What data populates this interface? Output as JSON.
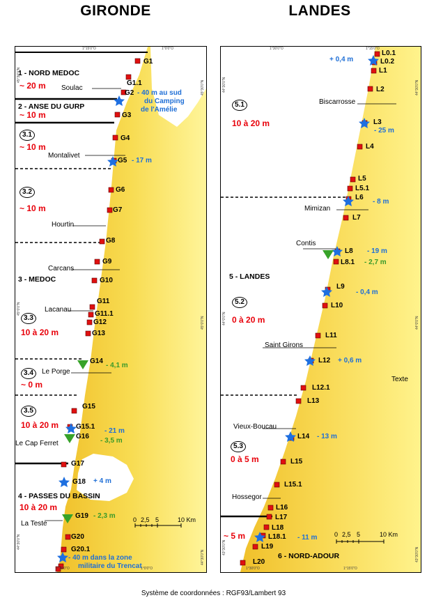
{
  "titles": {
    "left": "GIRONDE",
    "right": "LANDES"
  },
  "footer": "Système de coordonnées : RGF93/Lambert 93",
  "colors": {
    "sea": "#ffffff",
    "land_low": "#f1c62f",
    "land_high": "#fff59a",
    "site_marker": "#e01010",
    "star": "#1e6fe0",
    "triangle": "#37a229",
    "erosion_text": "#e8000a"
  },
  "gironde": {
    "sites": [
      "G1",
      "G1.1",
      "G2",
      "G3",
      "G4",
      "G5",
      "G6",
      "G7",
      "G8",
      "G9",
      "G10",
      "G11",
      "G11.1",
      "G12",
      "G13",
      "G14",
      "G15",
      "G15.1",
      "G16",
      "G17",
      "G18",
      "G19",
      "G20",
      "G20.1"
    ],
    "towns": [
      "Soulac",
      "Montalivet",
      "Hourtin",
      "Carcans",
      "Lacanau",
      "Le Porge",
      "Le Cap Ferret",
      "La Teste"
    ],
    "zones": [
      "1 - NORD MEDOC",
      "2 - ANSE DU GURP",
      "3 - MEDOC",
      "4 - PASSES DU BASSIN"
    ],
    "subzones": [
      "3.1",
      "3.2",
      "3.3",
      "3.4",
      "3.5"
    ],
    "erosion": [
      "~ 20 m",
      "~ 10 m",
      "~ 10 m",
      "~ 10 m",
      "10 à 20 m",
      "~ 0 m",
      "10 à 20 m",
      "10 à 20 m"
    ],
    "annotations": {
      "g2_line1": "- 40 m au sud",
      "g2_line2": "du Camping",
      "g2_line3": "de l'Amélie",
      "g5": "- 17 m",
      "g14": "- 4,1 m",
      "g15_1": "- 21 m",
      "g16": "- 3,5 m",
      "g18": "+ 4 m",
      "g19": "- 2,3 m",
      "g20_1_line1": "- 40 m dans la zone",
      "g20_1_line2": "militaire du Trencat"
    },
    "scale": {
      "ticks": [
        "0",
        "2,5",
        "5",
        "10 Km"
      ]
    },
    "graticule": {
      "top": [
        "1°15'0\"O",
        "1°0'0\"O"
      ],
      "bottom": [
        "1°15'0\"O",
        "1°0'0\"O"
      ],
      "left": [
        "45°30'0\"N",
        "45°0'0\"N",
        "44°30'0\"N"
      ],
      "right": [
        "45°30'0\"N",
        "45°0'0\"N",
        "44°30'0\"N"
      ]
    }
  },
  "landes": {
    "sites": [
      "L0.1",
      "L0.2",
      "L1",
      "L2",
      "L3",
      "L4",
      "L5",
      "L5.1",
      "L6",
      "L7",
      "L8",
      "L8.1",
      "L9",
      "L10",
      "L11",
      "L12",
      "L12.1",
      "L13",
      "L14",
      "L15",
      "L15.1",
      "L16",
      "L17",
      "L18",
      "L18.1",
      "L19",
      "L20"
    ],
    "towns": [
      "Biscarrosse",
      "Mimizan",
      "Contis",
      "Saint Girons",
      "Vieux-Boucau",
      "Hossegor"
    ],
    "zones": [
      "5 - LANDES",
      "6 - NORD-ADOUR"
    ],
    "subzones": [
      "5.1",
      "5.2",
      "5.3"
    ],
    "erosion": [
      "10 à 20 m",
      "0 à 20 m",
      "0 à 5 m",
      "~ 5 m"
    ],
    "annotations": {
      "l0": "+ 0,4 m",
      "l3": "- 25 m",
      "l6": "- 8 m",
      "l8": "- 19 m",
      "l8_1": "- 2,7 m",
      "l9": "- 0,4 m",
      "l12": "+ 0,6 m",
      "l14": "- 13 m",
      "l18_1": "- 11 m"
    },
    "texte": "Texte",
    "scale": {
      "ticks": [
        "0",
        "2,5",
        "5",
        "10 Km"
      ]
    },
    "graticule": {
      "top": [
        "1°30'0\"O",
        "1°15'0\"O"
      ],
      "bottom": [
        "1°30'0\"O",
        "1°15'0\"O"
      ],
      "left": [
        "44°30'0\"N",
        "44°0'0\"N",
        "43°30'0\"N"
      ],
      "right": [
        "44°30'0\"N",
        "44°0'0\"N",
        "43°30'0\"N"
      ]
    }
  }
}
